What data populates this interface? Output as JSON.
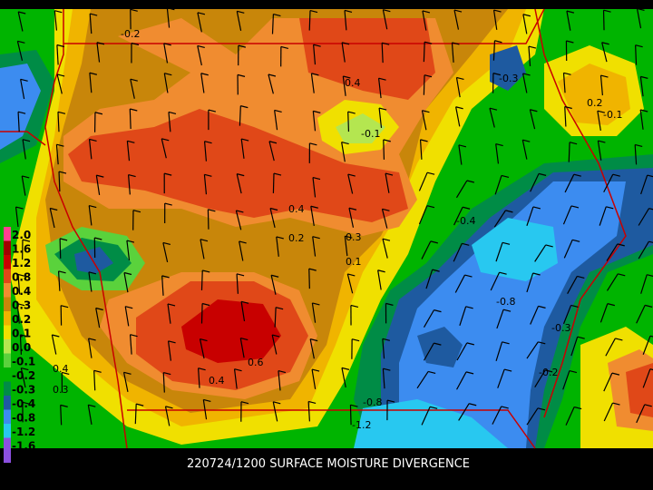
{
  "title": "220724/1200 SURFACE MOISTURE DIVERGENCE",
  "legend": [
    {
      "label": "2.0",
      "color": "#ff4090"
    },
    {
      "label": "1.6",
      "color": "#a00000"
    },
    {
      "label": "1.2",
      "color": "#c80000"
    },
    {
      "label": "0.8",
      "color": "#e04818"
    },
    {
      "label": "0.4",
      "color": "#f08c30"
    },
    {
      "label": "0.3",
      "color": "#c8860a"
    },
    {
      "label": "0.2",
      "color": "#f0b400"
    },
    {
      "label": "0.1",
      "color": "#f0e000"
    },
    {
      "label": "0.0",
      "color": "#b4e650"
    },
    {
      "label": "-0.1",
      "color": "#5ad23c"
    },
    {
      "label": "-0.2",
      "color": "#00b400"
    },
    {
      "label": "-0.3",
      "color": "#008c46"
    },
    {
      "label": "-0.4",
      "color": "#1e5aa0"
    },
    {
      "label": "-0.8",
      "color": "#3c8cf0"
    },
    {
      "label": "-1.2",
      "color": "#28c8f0"
    },
    {
      "label": "-1.6",
      "color": "#8c50e0"
    }
  ],
  "contour_labels": [
    "-0.2",
    "0.4",
    "-0.1",
    "0.4",
    "0.2",
    "0.3",
    "0.1",
    "0.6",
    "0.4",
    "-0.8",
    "-1.2",
    "-0.8",
    "-0.3",
    "0.2",
    "-0.1",
    "-0.3",
    "-0.2",
    "0.4",
    "0.3",
    "-0.4"
  ]
}
